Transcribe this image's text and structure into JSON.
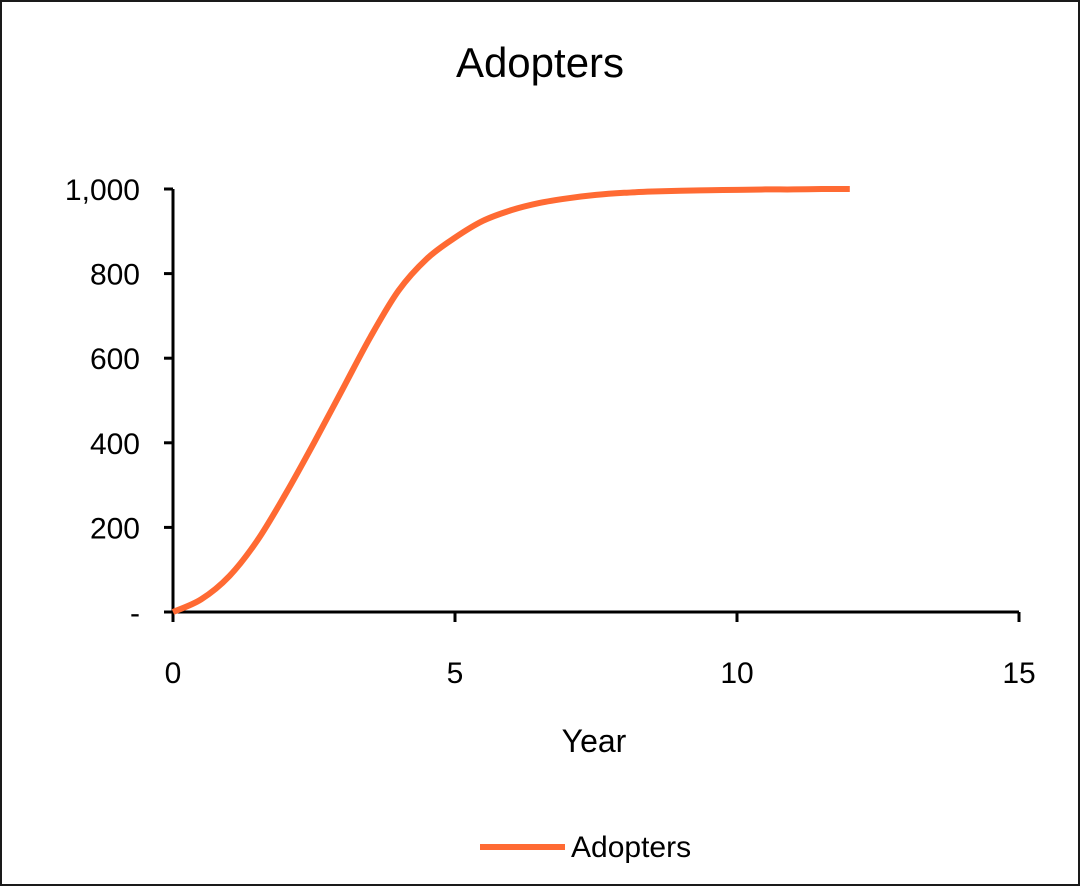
{
  "chart_data": {
    "type": "line",
    "title": "Adopters",
    "xlabel": "Year",
    "ylabel": "",
    "xlim": [
      0,
      15
    ],
    "ylim": [
      0,
      1000
    ],
    "x_ticks": [
      0,
      5,
      10,
      15
    ],
    "x_tick_labels": [
      "0",
      "5",
      "10",
      "15"
    ],
    "y_ticks": [
      0,
      200,
      400,
      600,
      800,
      1000
    ],
    "y_tick_labels": [
      "-",
      "200",
      "400",
      "600",
      "800",
      "1,000"
    ],
    "grid": false,
    "legend_position": "bottom",
    "x": [
      0,
      0.5,
      1,
      1.5,
      2,
      2.5,
      3,
      3.5,
      4,
      4.5,
      5,
      5.5,
      6,
      6.5,
      7,
      7.5,
      8,
      8.5,
      9,
      9.5,
      10,
      10.5,
      11,
      11.5,
      12
    ],
    "series": [
      {
        "name": "Adopters",
        "color": "#ff6a33",
        "values": [
          0,
          30,
          85,
          170,
          280,
          400,
          525,
          650,
          760,
          835,
          885,
          925,
          950,
          967,
          978,
          986,
          991,
          994,
          996,
          997,
          998,
          999,
          999,
          1000,
          1000
        ]
      }
    ]
  },
  "legend": {
    "items": [
      {
        "label": "Adopters",
        "color": "#ff6a33"
      }
    ]
  }
}
